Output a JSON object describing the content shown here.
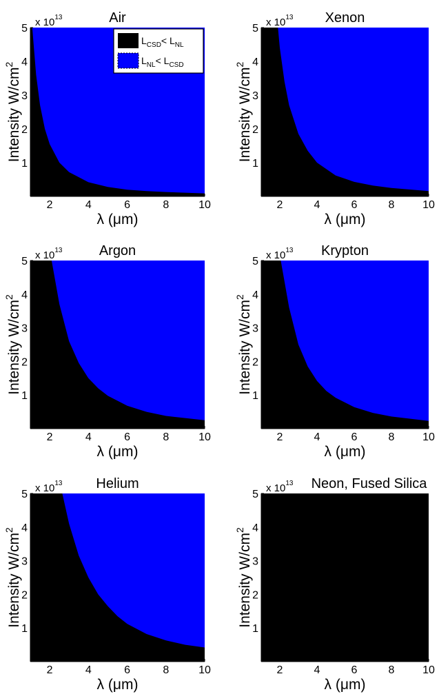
{
  "figure": {
    "black_label": {
      "main": "L",
      "sub": "CSD",
      "mid": "< L",
      "sub2": "NL"
    },
    "blue_label": {
      "main": "L",
      "sub": "NL",
      "mid": "< L",
      "sub2": "CSD"
    }
  },
  "colors": {
    "region_low": "#000000",
    "region_high": "#0000ff",
    "background": "#ffffff"
  },
  "chart_data": [
    {
      "type": "area",
      "title": "Air",
      "xlabel": "λ (μm)",
      "ylabel": "Intensity W/cm²",
      "y_scale_label": "x 10",
      "y_scale_exponent": "13",
      "xlim": [
        1,
        10
      ],
      "ylim": [
        0,
        5
      ],
      "xticks": [
        2,
        4,
        6,
        8,
        10
      ],
      "yticks": [
        1,
        2,
        3,
        4,
        5
      ],
      "legend": "top-right",
      "series": [
        {
          "name": "L_CSD < L_NL",
          "color": "#000000"
        },
        {
          "name": "L_NL < L_CSD",
          "color": "#0000ff"
        }
      ],
      "boundary": {
        "x": [
          1.1,
          1.3,
          1.5,
          1.75,
          2,
          2.5,
          3,
          4,
          5,
          6,
          7,
          8,
          10
        ],
        "y": [
          5,
          3.6,
          2.7,
          2.0,
          1.55,
          1.0,
          0.72,
          0.42,
          0.28,
          0.2,
          0.16,
          0.13,
          0.09
        ]
      }
    },
    {
      "type": "area",
      "title": "Xenon",
      "xlabel": "λ (μm)",
      "ylabel": "Intensity W/cm²",
      "y_scale_label": "x 10",
      "y_scale_exponent": "13",
      "xlim": [
        1,
        10
      ],
      "ylim": [
        0,
        5
      ],
      "xticks": [
        2,
        4,
        6,
        8,
        10
      ],
      "yticks": [
        1,
        2,
        3,
        4,
        5
      ],
      "boundary": {
        "x": [
          1.9,
          2,
          2.25,
          2.5,
          3,
          3.5,
          4,
          5,
          6,
          7,
          8,
          10
        ],
        "y": [
          5,
          4.4,
          3.4,
          2.7,
          1.85,
          1.35,
          1.0,
          0.62,
          0.43,
          0.32,
          0.25,
          0.16
        ]
      }
    },
    {
      "type": "area",
      "title": "Argon",
      "xlabel": "λ (μm)",
      "ylabel": "Intensity W/cm²",
      "y_scale_label": "x 10",
      "y_scale_exponent": "13",
      "xlim": [
        1,
        10
      ],
      "ylim": [
        0,
        5
      ],
      "xticks": [
        2,
        4,
        6,
        8,
        10
      ],
      "yticks": [
        1,
        2,
        3,
        4,
        5
      ],
      "boundary": {
        "x": [
          2.1,
          2.5,
          3,
          3.5,
          4,
          4.5,
          5,
          6,
          7,
          8,
          10
        ],
        "y": [
          5,
          3.7,
          2.6,
          1.95,
          1.5,
          1.2,
          0.98,
          0.68,
          0.5,
          0.38,
          0.25
        ]
      }
    },
    {
      "type": "area",
      "title": "Krypton",
      "xlabel": "λ (μm)",
      "ylabel": "Intensity W/cm²",
      "y_scale_label": "x 10",
      "y_scale_exponent": "13",
      "xlim": [
        1,
        10
      ],
      "ylim": [
        0,
        5
      ],
      "xticks": [
        2,
        4,
        6,
        8,
        10
      ],
      "yticks": [
        1,
        2,
        3,
        4,
        5
      ],
      "boundary": {
        "x": [
          2.05,
          2.5,
          3,
          3.5,
          4,
          4.5,
          5,
          6,
          7,
          8,
          10
        ],
        "y": [
          5,
          3.6,
          2.5,
          1.85,
          1.42,
          1.12,
          0.92,
          0.64,
          0.47,
          0.36,
          0.23
        ]
      }
    },
    {
      "type": "area",
      "title": "Helium",
      "xlabel": "λ (μm)",
      "ylabel": "Intensity W/cm²",
      "y_scale_label": "x 10",
      "y_scale_exponent": "13",
      "xlim": [
        1,
        10
      ],
      "ylim": [
        0,
        5
      ],
      "xticks": [
        2,
        4,
        6,
        8,
        10
      ],
      "yticks": [
        1,
        2,
        3,
        4,
        5
      ],
      "boundary": {
        "x": [
          2.65,
          3,
          3.5,
          4,
          4.5,
          5,
          5.5,
          6,
          7,
          8,
          9,
          10
        ],
        "y": [
          5,
          4.1,
          3.15,
          2.5,
          2.0,
          1.65,
          1.35,
          1.12,
          0.82,
          0.63,
          0.5,
          0.42
        ]
      }
    },
    {
      "type": "area",
      "title": "Neon, Fused Silica",
      "xlabel": "λ (μm)",
      "ylabel": "Intensity W/cm²",
      "y_scale_label": "x 10",
      "y_scale_exponent": "13",
      "xlim": [
        1,
        10
      ],
      "ylim": [
        0,
        5
      ],
      "xticks": [
        2,
        4,
        6,
        8,
        10
      ],
      "yticks": [
        1,
        2,
        3,
        4,
        5
      ],
      "boundary": null
    }
  ]
}
